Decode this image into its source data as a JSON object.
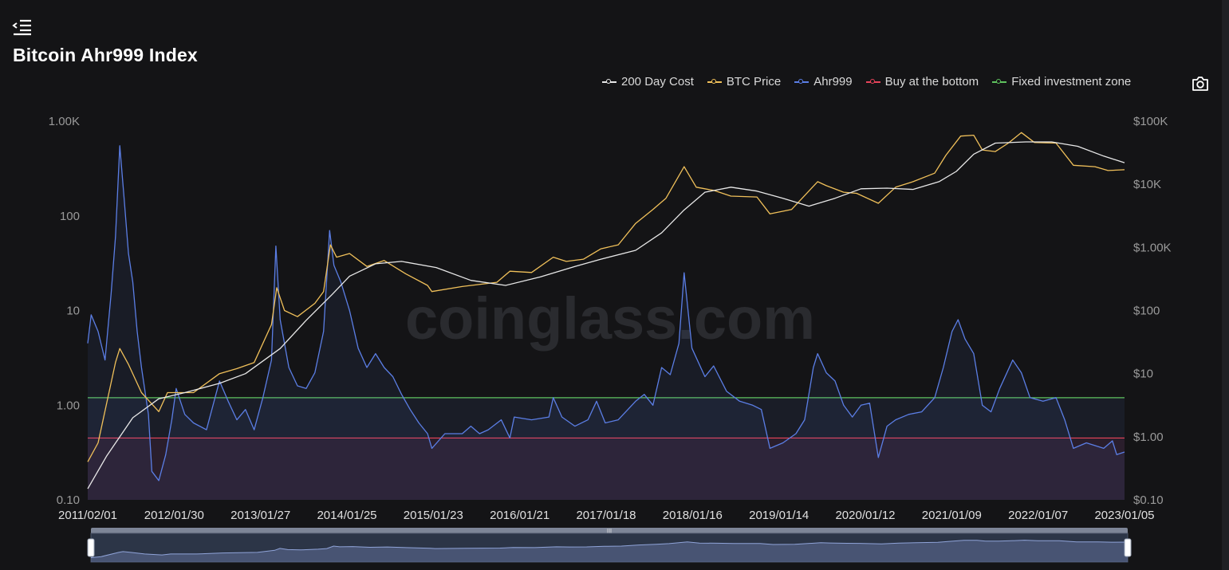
{
  "page": {
    "title": "Bitcoin Ahr999 Index",
    "watermark": "coinglass.com"
  },
  "icons": {
    "menu": "menu-collapse-icon",
    "snapshot": "camera-icon"
  },
  "legend": [
    {
      "label": "200 Day Cost",
      "color": "#e8e8e8"
    },
    {
      "label": "BTC Price",
      "color": "#f0c05a"
    },
    {
      "label": "Ahr999",
      "color": "#5b7ee5"
    },
    {
      "label": "Buy at the bottom",
      "color": "#e8435a"
    },
    {
      "label": "Fixed investment zone",
      "color": "#5fc35f"
    }
  ],
  "chart_data": {
    "type": "line",
    "x_tick_labels": [
      "2011/02/01",
      "2012/01/30",
      "2013/01/27",
      "2014/01/25",
      "2015/01/23",
      "2016/01/21",
      "2017/01/18",
      "2018/01/16",
      "2019/01/14",
      "2020/01/12",
      "2021/01/09",
      "2022/01/07",
      "2023/01/05"
    ],
    "x_range": [
      2011.08,
      2023.04
    ],
    "y_left": {
      "scale": "log",
      "range": [
        0.1,
        1000
      ],
      "ticks": [
        "0.10",
        "1.00",
        "10",
        "100",
        "1.00K"
      ]
    },
    "y_right": {
      "scale": "log",
      "range": [
        0.1,
        100000
      ],
      "ticks": [
        "$0.10",
        "$1.00",
        "$10",
        "$100",
        "$1.00K",
        "$10K",
        "$100K"
      ]
    },
    "reference_lines": [
      {
        "name": "Fixed investment zone",
        "value": 1.2,
        "color": "#5fc35f"
      },
      {
        "name": "Buy at the bottom",
        "value": 0.45,
        "color": "#e8435a"
      }
    ],
    "series": [
      {
        "name": "Ahr999",
        "axis": "left",
        "color": "#5b7ee5",
        "points": [
          [
            2011.08,
            4.5
          ],
          [
            2011.12,
            9
          ],
          [
            2011.2,
            6
          ],
          [
            2011.28,
            3
          ],
          [
            2011.35,
            15
          ],
          [
            2011.4,
            60
          ],
          [
            2011.45,
            550
          ],
          [
            2011.5,
            150
          ],
          [
            2011.55,
            40
          ],
          [
            2011.6,
            20
          ],
          [
            2011.65,
            6
          ],
          [
            2011.7,
            2.5
          ],
          [
            2011.78,
            0.8
          ],
          [
            2011.82,
            0.2
          ],
          [
            2011.9,
            0.16
          ],
          [
            2011.98,
            0.3
          ],
          [
            2012.05,
            0.7
          ],
          [
            2012.1,
            1.5
          ],
          [
            2012.2,
            0.8
          ],
          [
            2012.3,
            0.65
          ],
          [
            2012.45,
            0.55
          ],
          [
            2012.6,
            1.8
          ],
          [
            2012.7,
            1.1
          ],
          [
            2012.8,
            0.7
          ],
          [
            2012.9,
            0.9
          ],
          [
            2013.0,
            0.55
          ],
          [
            2013.1,
            1.2
          ],
          [
            2013.2,
            3
          ],
          [
            2013.25,
            48
          ],
          [
            2013.3,
            8
          ],
          [
            2013.4,
            2.5
          ],
          [
            2013.5,
            1.6
          ],
          [
            2013.6,
            1.5
          ],
          [
            2013.7,
            2.2
          ],
          [
            2013.8,
            6
          ],
          [
            2013.87,
            70
          ],
          [
            2013.92,
            30
          ],
          [
            2014.0,
            20
          ],
          [
            2014.1,
            10
          ],
          [
            2014.2,
            4
          ],
          [
            2014.3,
            2.5
          ],
          [
            2014.4,
            3.5
          ],
          [
            2014.5,
            2.5
          ],
          [
            2014.6,
            2
          ],
          [
            2014.7,
            1.3
          ],
          [
            2014.8,
            0.9
          ],
          [
            2014.9,
            0.65
          ],
          [
            2015.0,
            0.5
          ],
          [
            2015.05,
            0.35
          ],
          [
            2015.2,
            0.5
          ],
          [
            2015.4,
            0.5
          ],
          [
            2015.5,
            0.6
          ],
          [
            2015.6,
            0.5
          ],
          [
            2015.7,
            0.55
          ],
          [
            2015.85,
            0.7
          ],
          [
            2015.95,
            0.45
          ],
          [
            2016.0,
            0.75
          ],
          [
            2016.2,
            0.7
          ],
          [
            2016.4,
            0.75
          ],
          [
            2016.45,
            1.2
          ],
          [
            2016.55,
            0.75
          ],
          [
            2016.7,
            0.6
          ],
          [
            2016.85,
            0.7
          ],
          [
            2016.95,
            1.1
          ],
          [
            2017.05,
            0.65
          ],
          [
            2017.2,
            0.7
          ],
          [
            2017.4,
            1.1
          ],
          [
            2017.5,
            1.3
          ],
          [
            2017.6,
            1.0
          ],
          [
            2017.7,
            2.5
          ],
          [
            2017.8,
            2.1
          ],
          [
            2017.9,
            4.5
          ],
          [
            2017.96,
            25
          ],
          [
            2018.05,
            4
          ],
          [
            2018.2,
            2.0
          ],
          [
            2018.3,
            2.6
          ],
          [
            2018.45,
            1.4
          ],
          [
            2018.6,
            1.1
          ],
          [
            2018.75,
            1.0
          ],
          [
            2018.85,
            0.9
          ],
          [
            2018.95,
            0.35
          ],
          [
            2019.1,
            0.4
          ],
          [
            2019.25,
            0.5
          ],
          [
            2019.35,
            0.7
          ],
          [
            2019.45,
            2.5
          ],
          [
            2019.5,
            3.5
          ],
          [
            2019.6,
            2.2
          ],
          [
            2019.7,
            1.8
          ],
          [
            2019.8,
            1.0
          ],
          [
            2019.9,
            0.75
          ],
          [
            2020.0,
            1.0
          ],
          [
            2020.1,
            1.05
          ],
          [
            2020.2,
            0.28
          ],
          [
            2020.3,
            0.6
          ],
          [
            2020.4,
            0.7
          ],
          [
            2020.55,
            0.8
          ],
          [
            2020.7,
            0.85
          ],
          [
            2020.85,
            1.2
          ],
          [
            2020.95,
            2.5
          ],
          [
            2021.05,
            6
          ],
          [
            2021.12,
            8
          ],
          [
            2021.2,
            5
          ],
          [
            2021.3,
            3.5
          ],
          [
            2021.4,
            1.0
          ],
          [
            2021.5,
            0.85
          ],
          [
            2021.6,
            1.5
          ],
          [
            2021.75,
            3
          ],
          [
            2021.85,
            2.2
          ],
          [
            2021.95,
            1.2
          ],
          [
            2022.1,
            1.1
          ],
          [
            2022.25,
            1.2
          ],
          [
            2022.35,
            0.7
          ],
          [
            2022.45,
            0.35
          ],
          [
            2022.6,
            0.4
          ],
          [
            2022.8,
            0.35
          ],
          [
            2022.9,
            0.42
          ],
          [
            2022.95,
            0.3
          ],
          [
            2023.04,
            0.32
          ]
        ]
      },
      {
        "name": "BTC Price",
        "axis": "right",
        "color": "#f0c05a",
        "points": [
          [
            2011.08,
            0.4
          ],
          [
            2011.2,
            0.8
          ],
          [
            2011.4,
            15
          ],
          [
            2011.45,
            25
          ],
          [
            2011.55,
            14
          ],
          [
            2011.7,
            5
          ],
          [
            2011.9,
            2.5
          ],
          [
            2012.0,
            5
          ],
          [
            2012.3,
            5
          ],
          [
            2012.6,
            10
          ],
          [
            2012.8,
            12
          ],
          [
            2013.0,
            15
          ],
          [
            2013.2,
            60
          ],
          [
            2013.26,
            230
          ],
          [
            2013.35,
            100
          ],
          [
            2013.5,
            80
          ],
          [
            2013.7,
            130
          ],
          [
            2013.8,
            200
          ],
          [
            2013.88,
            1100
          ],
          [
            2013.95,
            700
          ],
          [
            2014.1,
            800
          ],
          [
            2014.3,
            500
          ],
          [
            2014.5,
            620
          ],
          [
            2014.75,
            380
          ],
          [
            2015.0,
            250
          ],
          [
            2015.05,
            200
          ],
          [
            2015.4,
            240
          ],
          [
            2015.8,
            280
          ],
          [
            2015.95,
            420
          ],
          [
            2016.2,
            400
          ],
          [
            2016.45,
            700
          ],
          [
            2016.6,
            600
          ],
          [
            2016.8,
            650
          ],
          [
            2017.0,
            950
          ],
          [
            2017.2,
            1100
          ],
          [
            2017.4,
            2400
          ],
          [
            2017.6,
            4000
          ],
          [
            2017.75,
            6000
          ],
          [
            2017.96,
            19000
          ],
          [
            2018.1,
            9000
          ],
          [
            2018.3,
            8000
          ],
          [
            2018.5,
            6500
          ],
          [
            2018.8,
            6300
          ],
          [
            2018.95,
            3400
          ],
          [
            2019.2,
            4000
          ],
          [
            2019.5,
            11000
          ],
          [
            2019.6,
            9500
          ],
          [
            2019.8,
            7500
          ],
          [
            2019.95,
            7200
          ],
          [
            2020.2,
            5000
          ],
          [
            2020.4,
            9000
          ],
          [
            2020.6,
            11000
          ],
          [
            2020.85,
            15000
          ],
          [
            2020.98,
            29000
          ],
          [
            2021.15,
            58000
          ],
          [
            2021.3,
            60000
          ],
          [
            2021.4,
            35000
          ],
          [
            2021.55,
            33000
          ],
          [
            2021.7,
            45000
          ],
          [
            2021.85,
            66000
          ],
          [
            2022.0,
            46000
          ],
          [
            2022.25,
            45000
          ],
          [
            2022.45,
            20000
          ],
          [
            2022.7,
            19000
          ],
          [
            2022.85,
            16500
          ],
          [
            2023.04,
            17000
          ]
        ]
      },
      {
        "name": "200 Day Cost",
        "axis": "right",
        "color": "#e8e8e8",
        "points": [
          [
            2011.08,
            0.15
          ],
          [
            2011.3,
            0.5
          ],
          [
            2011.6,
            2
          ],
          [
            2011.9,
            4
          ],
          [
            2012.2,
            5
          ],
          [
            2012.6,
            7
          ],
          [
            2012.9,
            10
          ],
          [
            2013.3,
            25
          ],
          [
            2013.6,
            70
          ],
          [
            2013.9,
            180
          ],
          [
            2014.1,
            350
          ],
          [
            2014.4,
            550
          ],
          [
            2014.7,
            600
          ],
          [
            2015.1,
            480
          ],
          [
            2015.5,
            300
          ],
          [
            2015.9,
            250
          ],
          [
            2016.3,
            340
          ],
          [
            2016.7,
            500
          ],
          [
            2017.0,
            650
          ],
          [
            2017.4,
            900
          ],
          [
            2017.7,
            1700
          ],
          [
            2017.95,
            3800
          ],
          [
            2018.2,
            7500
          ],
          [
            2018.5,
            9000
          ],
          [
            2018.8,
            7800
          ],
          [
            2019.1,
            6000
          ],
          [
            2019.4,
            4500
          ],
          [
            2019.7,
            6000
          ],
          [
            2020.0,
            8500
          ],
          [
            2020.3,
            8700
          ],
          [
            2020.6,
            8300
          ],
          [
            2020.9,
            11000
          ],
          [
            2021.1,
            16000
          ],
          [
            2021.3,
            30000
          ],
          [
            2021.55,
            45000
          ],
          [
            2021.9,
            47000
          ],
          [
            2022.2,
            47000
          ],
          [
            2022.5,
            40000
          ],
          [
            2022.8,
            28000
          ],
          [
            2023.04,
            22000
          ]
        ]
      }
    ]
  }
}
